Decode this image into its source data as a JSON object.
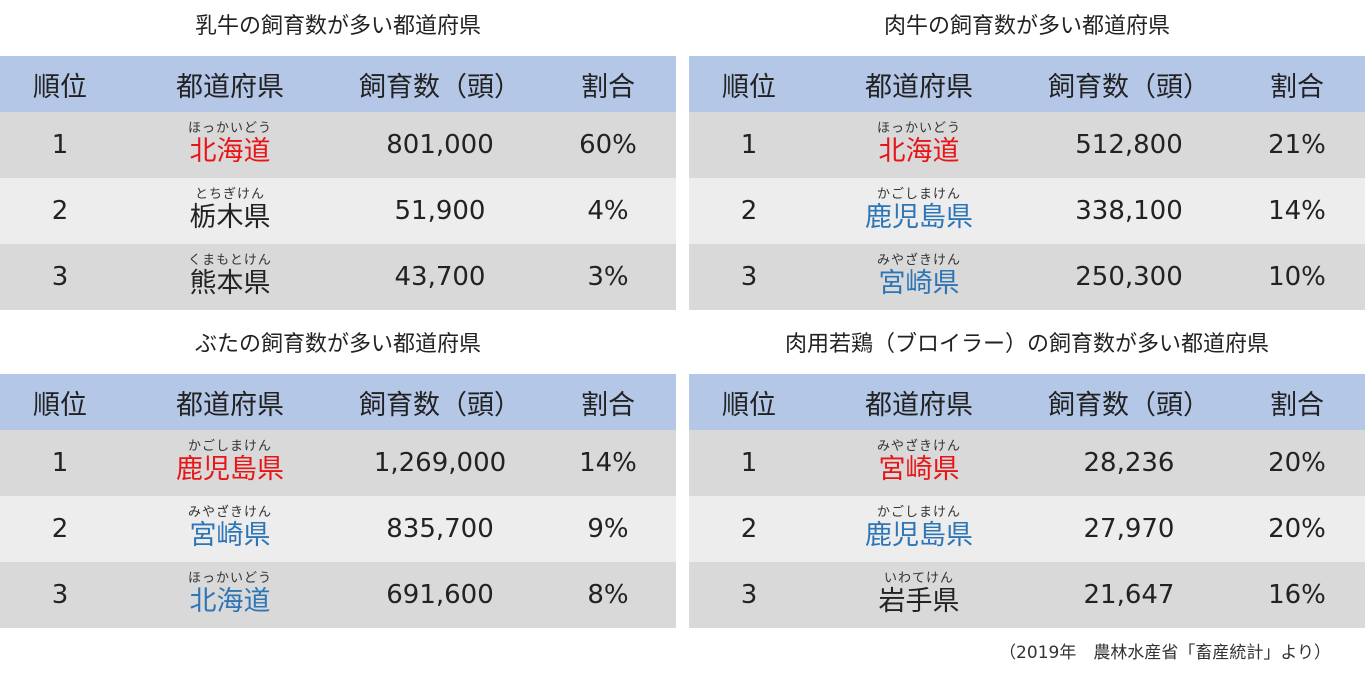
{
  "headers": {
    "rank": "順位",
    "pref": "都道府県",
    "count": "飼育数（頭）",
    "share": "割合"
  },
  "panels": [
    {
      "title": "乳牛の飼育数が多い都道府県",
      "rows": [
        {
          "rank": "1",
          "ruby": "ほっかいどう",
          "pref": "北海道",
          "color": "#e81416",
          "count": "801,000",
          "share": "60%"
        },
        {
          "rank": "2",
          "ruby": "とちぎけん",
          "pref": "栃木県",
          "color": "#222222",
          "count": "51,900",
          "share": "4%"
        },
        {
          "rank": "3",
          "ruby": "くまもとけん",
          "pref": "熊本県",
          "color": "#222222",
          "count": "43,700",
          "share": "3%"
        }
      ]
    },
    {
      "title": "肉牛の飼育数が多い都道府県",
      "rows": [
        {
          "rank": "1",
          "ruby": "ほっかいどう",
          "pref": "北海道",
          "color": "#e81416",
          "count": "512,800",
          "share": "21%"
        },
        {
          "rank": "2",
          "ruby": "かごしまけん",
          "pref": "鹿児島県",
          "color": "#2e75b6",
          "count": "338,100",
          "share": "14%"
        },
        {
          "rank": "3",
          "ruby": "みやざきけん",
          "pref": "宮崎県",
          "color": "#2e75b6",
          "count": "250,300",
          "share": "10%"
        }
      ]
    },
    {
      "title": "ぶたの飼育数が多い都道府県",
      "rows": [
        {
          "rank": "1",
          "ruby": "かごしまけん",
          "pref": "鹿児島県",
          "color": "#e81416",
          "count": "1,269,000",
          "share": "14%"
        },
        {
          "rank": "2",
          "ruby": "みやざきけん",
          "pref": "宮崎県",
          "color": "#2e75b6",
          "count": "835,700",
          "share": "9%"
        },
        {
          "rank": "3",
          "ruby": "ほっかいどう",
          "pref": "北海道",
          "color": "#2e75b6",
          "count": "691,600",
          "share": "8%"
        }
      ]
    },
    {
      "title": "肉用若鶏（ブロイラー）の飼育数が多い都道府県",
      "rows": [
        {
          "rank": "1",
          "ruby": "みやざきけん",
          "pref": "宮崎県",
          "color": "#e81416",
          "count": "28,236",
          "share": "20%"
        },
        {
          "rank": "2",
          "ruby": "かごしまけん",
          "pref": "鹿児島県",
          "color": "#2e75b6",
          "count": "27,970",
          "share": "20%"
        },
        {
          "rank": "3",
          "ruby": "いわてけん",
          "pref": "岩手県",
          "color": "#222222",
          "count": "21,647",
          "share": "16%"
        }
      ]
    }
  ],
  "source": "（2019年　農林水産省「畜産統計」より）"
}
